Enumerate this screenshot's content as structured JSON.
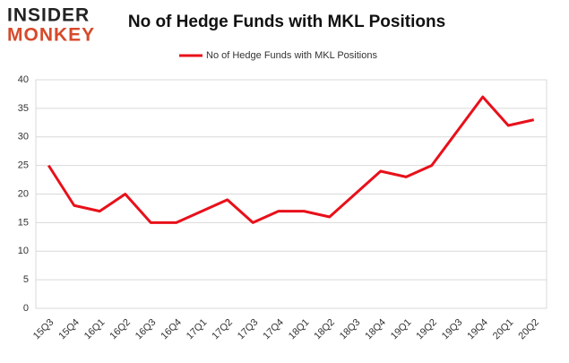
{
  "logo": {
    "line1": "INSIDER",
    "line2": "MONKEY"
  },
  "chart_data": {
    "type": "line",
    "title": "No of Hedge Funds with MKL Positions",
    "categories": [
      "15Q3",
      "15Q4",
      "16Q1",
      "16Q2",
      "16Q3",
      "16Q4",
      "17Q1",
      "17Q2",
      "17Q3",
      "17Q4",
      "18Q1",
      "18Q2",
      "18Q3",
      "18Q4",
      "19Q1",
      "19Q2",
      "19Q3",
      "19Q4",
      "20Q1",
      "20Q2"
    ],
    "series": [
      {
        "name": "No of Hedge Funds with MKL Positions",
        "color": "#e8101a",
        "values": [
          25,
          18,
          17,
          20,
          15,
          15,
          17,
          19,
          15,
          17,
          17,
          16,
          20,
          24,
          23,
          25,
          31,
          37,
          32,
          33
        ]
      }
    ],
    "ylim": [
      0,
      40
    ],
    "yticks": [
      0,
      5,
      10,
      15,
      20,
      25,
      30,
      35,
      40
    ],
    "grid": true,
    "legend": "top"
  }
}
